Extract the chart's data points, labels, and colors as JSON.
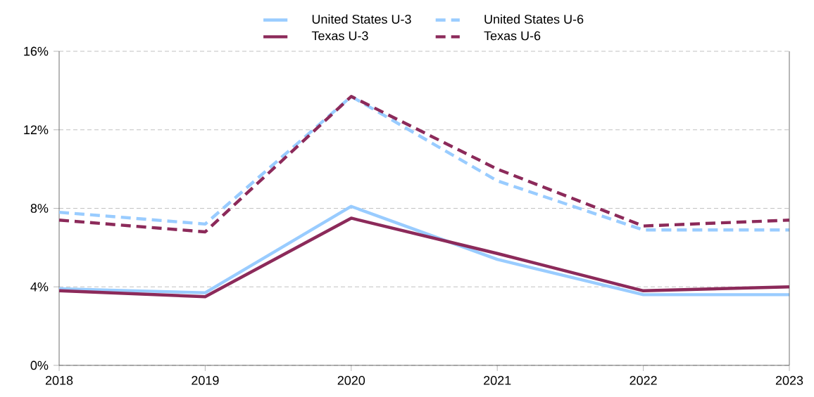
{
  "chart_data": {
    "type": "line",
    "categories": [
      "2018",
      "2019",
      "2020",
      "2021",
      "2022",
      "2023"
    ],
    "series": [
      {
        "name": "United States U-3",
        "color": "#99ccff",
        "line_style": "solid",
        "values": [
          3.9,
          3.7,
          8.1,
          5.4,
          3.6,
          3.6
        ]
      },
      {
        "name": "United States U-6",
        "color": "#99ccff",
        "line_style": "dashed",
        "values": [
          7.8,
          7.2,
          13.7,
          9.4,
          6.9,
          6.9
        ]
      },
      {
        "name": "Texas U-3",
        "color": "#8c2a5a",
        "line_style": "solid",
        "values": [
          3.8,
          3.5,
          7.5,
          5.7,
          3.8,
          4.0
        ]
      },
      {
        "name": "Texas U-6",
        "color": "#8c2a5a",
        "line_style": "dashed",
        "values": [
          7.4,
          6.8,
          13.7,
          10.0,
          7.1,
          7.4
        ]
      }
    ],
    "ylim": [
      0,
      16
    ],
    "yticks": [
      {
        "value": 0,
        "label": "0%"
      },
      {
        "value": 4,
        "label": "4%"
      },
      {
        "value": 8,
        "label": "8%"
      },
      {
        "value": 12,
        "label": "12%"
      },
      {
        "value": 16,
        "label": "16%"
      }
    ],
    "grid": "y",
    "legend": "top",
    "marker": "none"
  }
}
